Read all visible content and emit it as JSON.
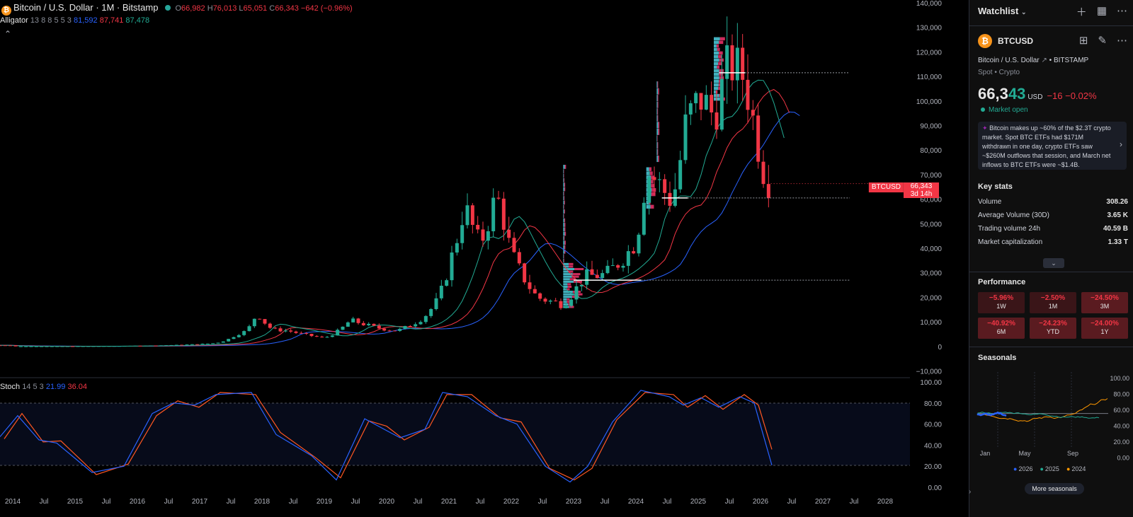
{
  "legend": {
    "symbol": "Bitcoin / U.S. Dollar · 1M · Bitstamp",
    "btc_letter": "₿",
    "o_label": "O",
    "o_val": "66,982",
    "h_label": "H",
    "h_val": "76,013",
    "l_label": "L",
    "l_val": "65,051",
    "c_label": "C",
    "c_val": "66,343",
    "change": "−642 (−0.96%)",
    "alligator_label": "Alligator",
    "alligator_params": "13 8 8 5 5 3",
    "alligator_v1": "81,592",
    "alligator_v2": "87,741",
    "alligator_v3": "87,478",
    "collapse_icon": "chevron-up"
  },
  "stoch": {
    "label": "Stoch",
    "params": "14 5 3",
    "k": "21.99",
    "d": "36.04"
  },
  "price_tag": {
    "symbol": "BTCUSD",
    "price": "66,343",
    "countdown": "3d 14h"
  },
  "y_axis": [
    "140,000",
    "130,000",
    "120,000",
    "110,000",
    "100,000",
    "90,000",
    "80,000",
    "70,000",
    "60,000",
    "50,000",
    "40,000",
    "30,000",
    "20,000",
    "10,000",
    "0",
    "−10,000"
  ],
  "stoch_axis": [
    "100.00",
    "80.00",
    "60.00",
    "40.00",
    "20.00",
    "0.00"
  ],
  "x_axis": [
    "2014",
    "Jul",
    "2015",
    "Jul",
    "2016",
    "Jul",
    "2017",
    "Jul",
    "2018",
    "Jul",
    "2019",
    "Jul",
    "2020",
    "Jul",
    "2021",
    "Jul",
    "2022",
    "Jul",
    "2023",
    "Jul",
    "2024",
    "Jul",
    "2025",
    "Jul",
    "2026",
    "Jul",
    "2027",
    "Jul",
    "2028"
  ],
  "colors": {
    "up": "#22ab94",
    "down": "#f23645",
    "jaw": "#2962ff",
    "teeth": "#f23645",
    "lips": "#22ab94",
    "vp_up": "#4dd0e1",
    "vp_down": "#f0336b"
  },
  "chart_data": {
    "type": "candlestick",
    "title": "Bitcoin / U.S. Dollar · 1M · Bitstamp",
    "x": [
      "2016-10",
      "2017-04",
      "2017-08",
      "2017-10",
      "2017-12",
      "2018-03",
      "2018-06",
      "2019-01",
      "2019-06",
      "2019-12",
      "2020-03",
      "2020-08",
      "2020-11",
      "2021-01",
      "2021-04",
      "2021-07",
      "2021-10",
      "2021-11",
      "2022-01",
      "2022-06",
      "2022-11",
      "2023-03",
      "2023-07",
      "2023-10",
      "2024-01",
      "2024-03",
      "2024-05",
      "2024-08",
      "2024-11",
      "2024-12",
      "2025-01",
      "2025-04",
      "2025-07",
      "2025-10",
      "2025-12",
      "2026-02",
      "2026-03"
    ],
    "close": [
      700,
      1350,
      4700,
      6400,
      13800,
      6900,
      6400,
      3450,
      10800,
      7200,
      6400,
      11600,
      19700,
      33100,
      57700,
      41500,
      61300,
      57000,
      38500,
      19900,
      17100,
      28500,
      29200,
      34700,
      42600,
      71300,
      67500,
      59000,
      96400,
      93400,
      102400,
      94200,
      115800,
      109600,
      87900,
      68000,
      66343
    ],
    "ylim": [
      -10000,
      140000
    ]
  },
  "side": {
    "watchlist_label": "Watchlist",
    "add_icon": "plus",
    "symbol": "BTCUSD",
    "logo_letter": "₿",
    "description": "Bitcoin / U.S. Dollar",
    "exchange": "BITSTAMP",
    "type_line": "Spot • Crypto",
    "price_main": "66,3",
    "price_hl": "43",
    "currency": "USD",
    "change": "−16  −0.02%",
    "market_status": "Market open",
    "news": "Bitcoin makes up ~60% of the $2.3T crypto market. Spot BTC ETFs had $171M withdrawn in one day, crypto ETFs saw ~$260M outflows that session, and March net inflows to BTC ETFs were ~$1.4B.",
    "key_stats_title": "Key stats",
    "stats": [
      {
        "label": "Volume",
        "value": "308.26"
      },
      {
        "label": "Average Volume (30D)",
        "value": "3.65 K"
      },
      {
        "label": "Trading volume 24h",
        "value": "40.59 B"
      },
      {
        "label": "Market capitalization",
        "value": "1.33 T"
      }
    ],
    "performance_title": "Performance",
    "performance": [
      {
        "value": "−5.96%",
        "label": "1W"
      },
      {
        "value": "−2.50%",
        "label": "1M"
      },
      {
        "value": "−24.50%",
        "label": "3M"
      },
      {
        "value": "−40.92%",
        "label": "6M"
      },
      {
        "value": "−24.23%",
        "label": "YTD"
      },
      {
        "value": "−24.00%",
        "label": "1Y"
      }
    ],
    "seasonals_title": "Seasonals",
    "season_axis": [
      "100.00",
      "80.00",
      "60.00",
      "40.00",
      "20.00",
      "0.00"
    ],
    "season_x": [
      "Jan",
      "May",
      "Sep"
    ],
    "season_legend": [
      "2026",
      "2025",
      "2024"
    ],
    "more_seasonals": "More seasonals"
  }
}
